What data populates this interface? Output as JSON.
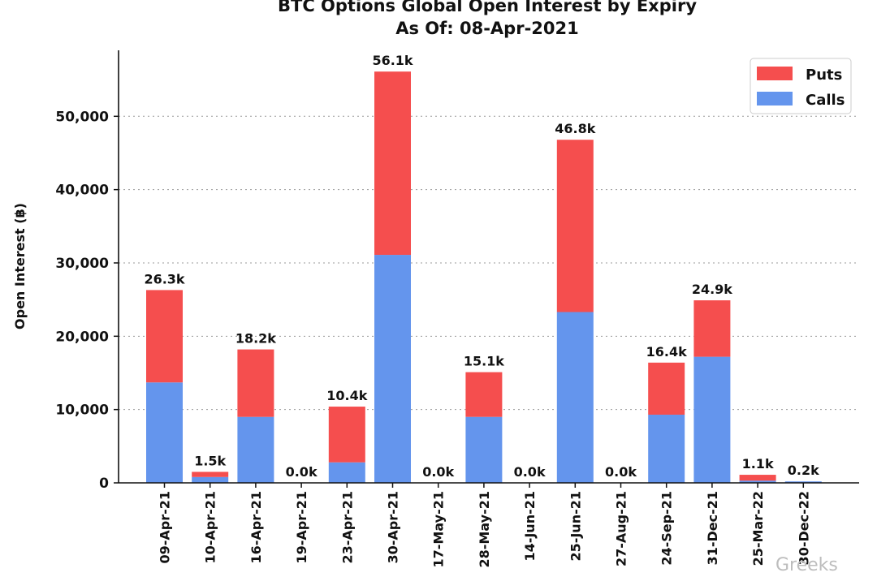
{
  "chart_data": {
    "type": "bar",
    "stacked": true,
    "title": "BTC Options Global Open Interest by Expiry",
    "subtitle": "As Of: 08-Apr-2021",
    "xlabel": "",
    "ylabel": "Open Interest (฿)",
    "ylim": [
      0,
      59000
    ],
    "yticks": [
      0,
      10000,
      20000,
      30000,
      40000,
      50000
    ],
    "ytick_labels": [
      "0",
      "10,000",
      "20,000",
      "30,000",
      "40,000",
      "50,000"
    ],
    "grid": true,
    "legend_position": "top-right",
    "categories": [
      "09-Apr-21",
      "10-Apr-21",
      "16-Apr-21",
      "19-Apr-21",
      "23-Apr-21",
      "30-Apr-21",
      "17-May-21",
      "28-May-21",
      "14-Jun-21",
      "25-Jun-21",
      "27-Aug-21",
      "24-Sep-21",
      "31-Dec-21",
      "25-Mar-22",
      "30-Dec-22"
    ],
    "series": [
      {
        "name": "Calls",
        "color": "#6495ed",
        "values": [
          13700,
          800,
          9000,
          0,
          2800,
          31100,
          0,
          9000,
          0,
          23300,
          0,
          9300,
          17200,
          300,
          200
        ]
      },
      {
        "name": "Puts",
        "color": "#f54e4e",
        "values": [
          12600,
          700,
          9200,
          0,
          7600,
          25000,
          0,
          6100,
          0,
          23500,
          0,
          7100,
          7700,
          800,
          0
        ]
      }
    ],
    "totals_labels": [
      "26.3k",
      "1.5k",
      "18.2k",
      "0.0k",
      "10.4k",
      "56.1k",
      "0.0k",
      "15.1k",
      "0.0k",
      "46.8k",
      "0.0k",
      "16.4k",
      "24.9k",
      "1.1k",
      "0.2k"
    ],
    "legend": [
      "Puts",
      "Calls"
    ]
  },
  "watermark": {
    "text": "Greeks"
  }
}
